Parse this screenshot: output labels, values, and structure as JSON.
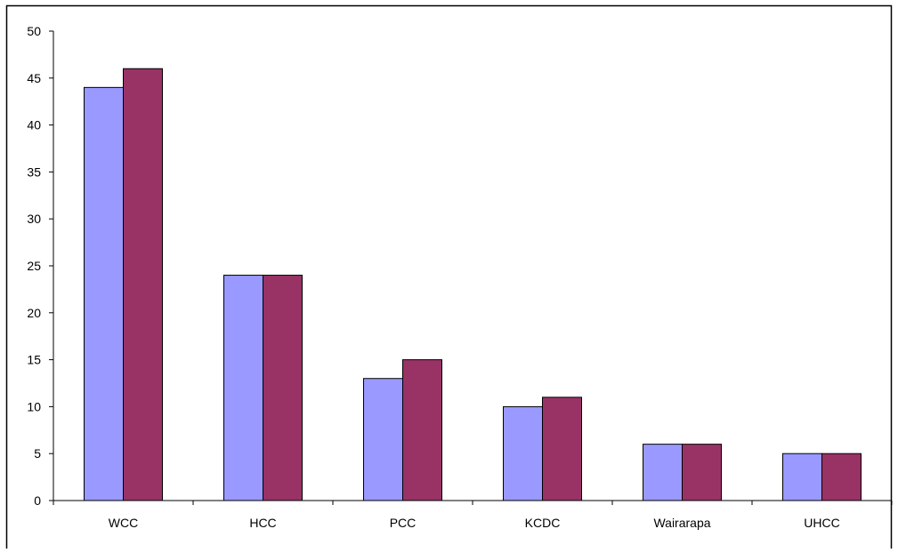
{
  "chart_data": {
    "type": "bar",
    "title": "",
    "xlabel": "",
    "ylabel": "",
    "categories": [
      "WCC",
      "HCC",
      "PCC",
      "KCDC",
      "Wairarapa",
      "UHCC"
    ],
    "series": [
      {
        "values": [
          44,
          24,
          13,
          10,
          6,
          5
        ],
        "color": "#9999ff"
      },
      {
        "values": [
          46,
          24,
          15,
          11,
          6,
          5
        ],
        "color": "#993366"
      }
    ],
    "ylim": [
      0,
      50
    ],
    "yticks": [
      0,
      5,
      10,
      15,
      20,
      25,
      30,
      35,
      40,
      45,
      50
    ],
    "grid": false,
    "legend": "none"
  }
}
